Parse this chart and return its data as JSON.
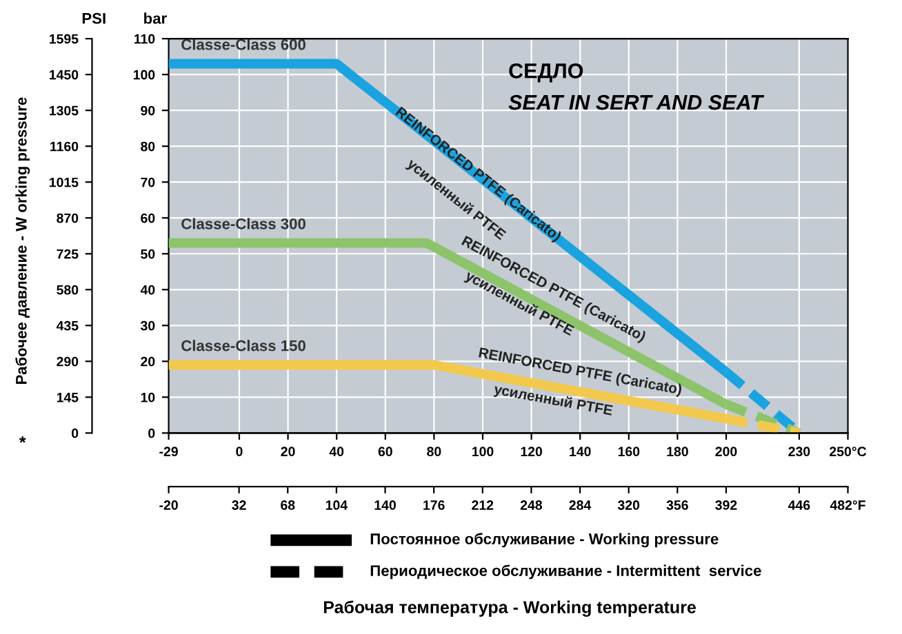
{
  "chart_data": {
    "type": "line",
    "title": "СЕДЛО",
    "subtitle": "SEAT IN SERT AND SEAT",
    "ylabel": "bar",
    "y2label": "PSI",
    "annotations": [
      "Рабочее давление - W orking pressure",
      "*",
      "REINFORCED PTFE (Caricato)",
      "усиленный PTFE",
      "REINFORCED PTFE (Caricato)",
      "усиленный PTFE",
      "REINFORCED PTFE (Caricato)",
      "усиленный PTFE",
      "Постоянное обслуживание - Working pressure",
      "Периодическое обслуживание - Intermittent  service",
      "Рабочая температура - Working temperature"
    ],
    "series": [
      {
        "name": "Classe-Class 600",
        "color": "#1ba3e0",
        "x": [
          -29,
          40,
          200
        ],
        "values": [
          103,
          103,
          17
        ],
        "line_style": "solid"
      },
      {
        "color": "#1ba3e0",
        "x": [
          200,
          230
        ],
        "values": [
          17,
          0
        ],
        "line_style": "dashed"
      },
      {
        "name": "Classe-Class 300",
        "color": "#8dc46b",
        "x": [
          -29,
          77,
          200
        ],
        "values": [
          53,
          53,
          8
        ],
        "line_style": "solid"
      },
      {
        "color": "#8dc46b",
        "x": [
          200,
          230
        ],
        "values": [
          8,
          0
        ],
        "line_style": "dashed"
      },
      {
        "name": "Classe-Class 150",
        "color": "#f2c94c",
        "x": [
          -29,
          80,
          200
        ],
        "values": [
          19,
          19,
          4
        ],
        "line_style": "solid"
      },
      {
        "color": "#f2c94c",
        "x": [
          200,
          230
        ],
        "values": [
          4,
          0
        ],
        "line_style": "dashed"
      }
    ],
    "xlim": [
      -29,
      250
    ],
    "xticks": [
      -29,
      0,
      20,
      40,
      60,
      80,
      100,
      120,
      140,
      160,
      180,
      200,
      230,
      {
        "value": 250,
        "label": "250°C"
      }
    ],
    "x2lim": [
      -20,
      482
    ],
    "x2ticks": [
      -20,
      32,
      68,
      104,
      140,
      176,
      212,
      248,
      284,
      320,
      356,
      392,
      446,
      {
        "value": 482,
        "label": "482°F"
      }
    ],
    "ylim": [
      0,
      110
    ],
    "yticks": [
      0,
      10,
      20,
      30,
      40,
      50,
      60,
      70,
      80,
      90,
      100,
      110
    ],
    "y2lim": [
      0,
      1595
    ],
    "y2ticks": [
      0,
      145,
      290,
      435,
      580,
      725,
      870,
      1015,
      1160,
      1305,
      1450,
      1595
    ],
    "grid": true,
    "marker": "none"
  }
}
